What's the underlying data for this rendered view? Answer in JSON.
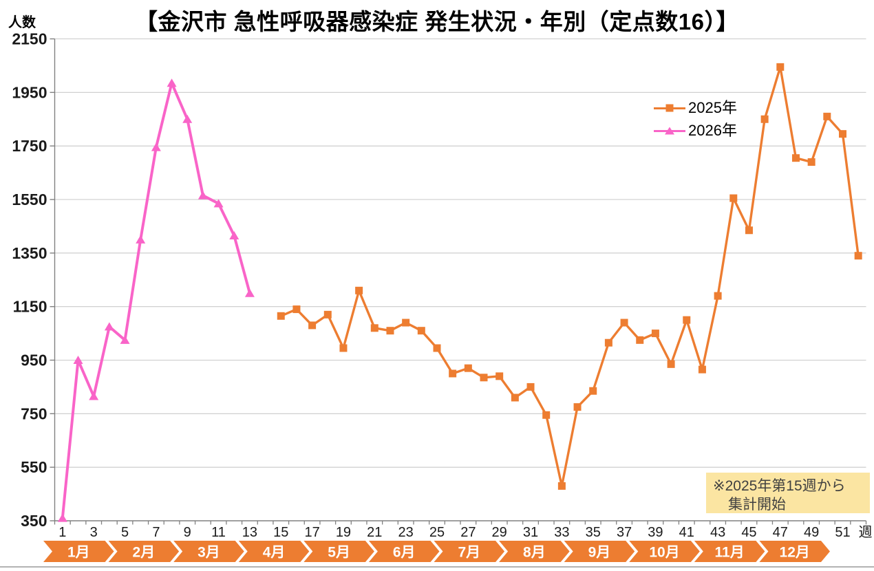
{
  "title": "【金沢市 急性呼吸器感染症 発生状況・年別（定点数16）】",
  "y_axis_title": "人数",
  "x_axis_title": "週",
  "note": {
    "line1": "※2025年第15週から",
    "line2": "集計開始",
    "bg": "#FBE5A2"
  },
  "legend": [
    {
      "label": "2025年",
      "color": "#ED7D31",
      "marker": "square"
    },
    {
      "label": "2026年",
      "color": "#F964C8",
      "marker": "triangle"
    }
  ],
  "colors": {
    "grid": "#C9C9C9",
    "axis": "#808080",
    "tick_text": "#1A1A1A",
    "band": "#ED7D31",
    "band_text": "#FFFFFF"
  },
  "chart_data": {
    "type": "line",
    "title": "【金沢市 急性呼吸器感染症 発生状況・年別（定点数16）】",
    "xlabel": "週",
    "ylabel": "人数",
    "x_range": [
      1,
      52
    ],
    "x_tick_labels": [
      1,
      3,
      5,
      7,
      9,
      11,
      13,
      15,
      17,
      19,
      21,
      23,
      25,
      27,
      29,
      31,
      33,
      35,
      37,
      39,
      41,
      43,
      45,
      47,
      49,
      51
    ],
    "ylim": [
      350,
      2150
    ],
    "y_ticks": [
      350,
      550,
      750,
      950,
      1150,
      1350,
      1550,
      1750,
      1950,
      2150
    ],
    "grid": true,
    "legend_position": "upper right",
    "months": [
      "1月",
      "2月",
      "3月",
      "4月",
      "5月",
      "6月",
      "7月",
      "8月",
      "9月",
      "10月",
      "11月",
      "12月"
    ],
    "annotation": "※2025年第15週から集計開始",
    "series": [
      {
        "name": "2025年",
        "color": "#ED7D31",
        "marker": "square",
        "start_week": 15,
        "values": [
          1115,
          1140,
          1080,
          1120,
          995,
          1210,
          1070,
          1060,
          1090,
          1060,
          995,
          900,
          920,
          885,
          890,
          810,
          850,
          745,
          480,
          775,
          835,
          1015,
          1090,
          1025,
          1050,
          935,
          1100,
          915,
          1190,
          1555,
          1435,
          1850,
          2045,
          1705,
          1690,
          1860,
          1795,
          1340
        ]
      },
      {
        "name": "2026年",
        "color": "#F964C8",
        "marker": "triangle",
        "start_week": 1,
        "values": [
          360,
          950,
          815,
          1075,
          1025,
          1400,
          1745,
          1985,
          1850,
          1565,
          1535,
          1415,
          1200
        ]
      }
    ]
  }
}
